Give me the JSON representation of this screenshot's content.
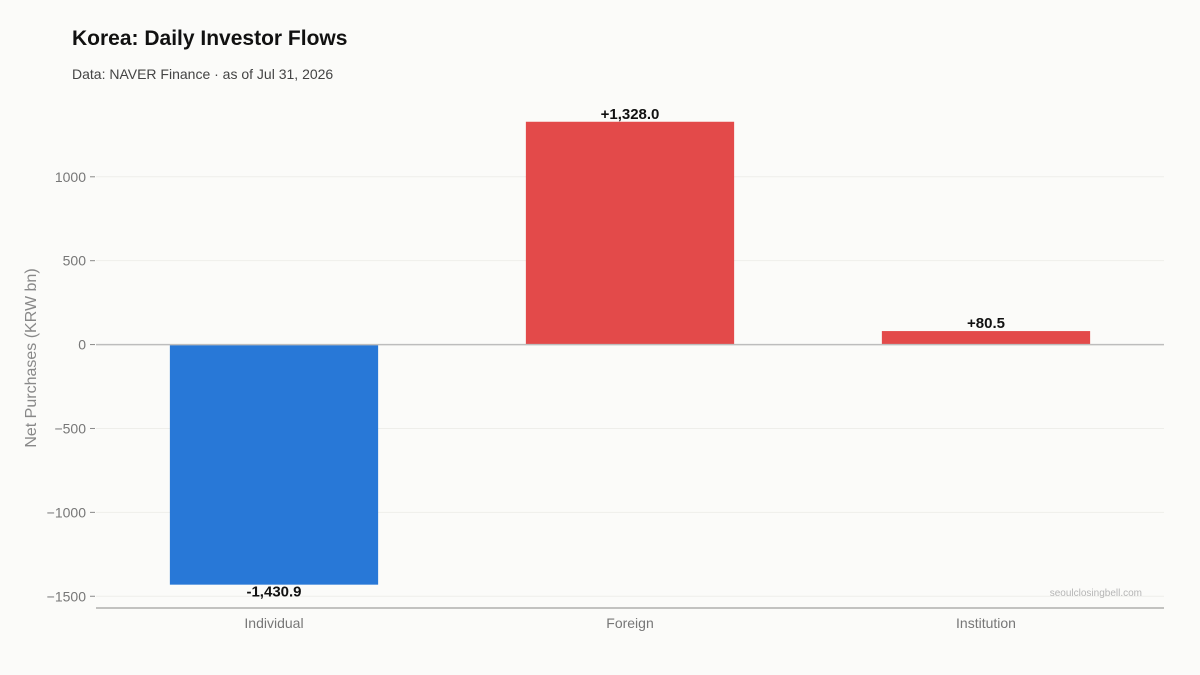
{
  "header": {
    "title": "Korea: Daily Investor Flows",
    "subtitle": "Data: NAVER Finance · as of Jul 31, 2026"
  },
  "watermark": "seoulclosingbell.com",
  "colors": {
    "positive": "#e34a4a",
    "negative": "#2878d7",
    "grid": "#eeeeea",
    "zero_line": "#bdbdbd",
    "axis": "#888888"
  },
  "chart_data": {
    "type": "bar",
    "title": "Korea: Daily Investor Flows",
    "subtitle": "Data: NAVER Finance · as of Jul 31, 2026",
    "xlabel": "",
    "ylabel": "Net Purchases (KRW bn)",
    "categories": [
      "Individual",
      "Foreign",
      "Institution"
    ],
    "values": [
      -1430.9,
      1328.0,
      80.5
    ],
    "value_labels": [
      "-1,430.9",
      "+1,328.0",
      "+80.5"
    ],
    "ylim": [
      -1570,
      1410
    ],
    "yticks": [
      1000,
      500,
      0,
      -500,
      -1000,
      -1500
    ],
    "ytick_labels": [
      "1000",
      "500",
      "0",
      "−500",
      "−1000",
      "−1500"
    ],
    "grid": true,
    "legend": "none"
  }
}
